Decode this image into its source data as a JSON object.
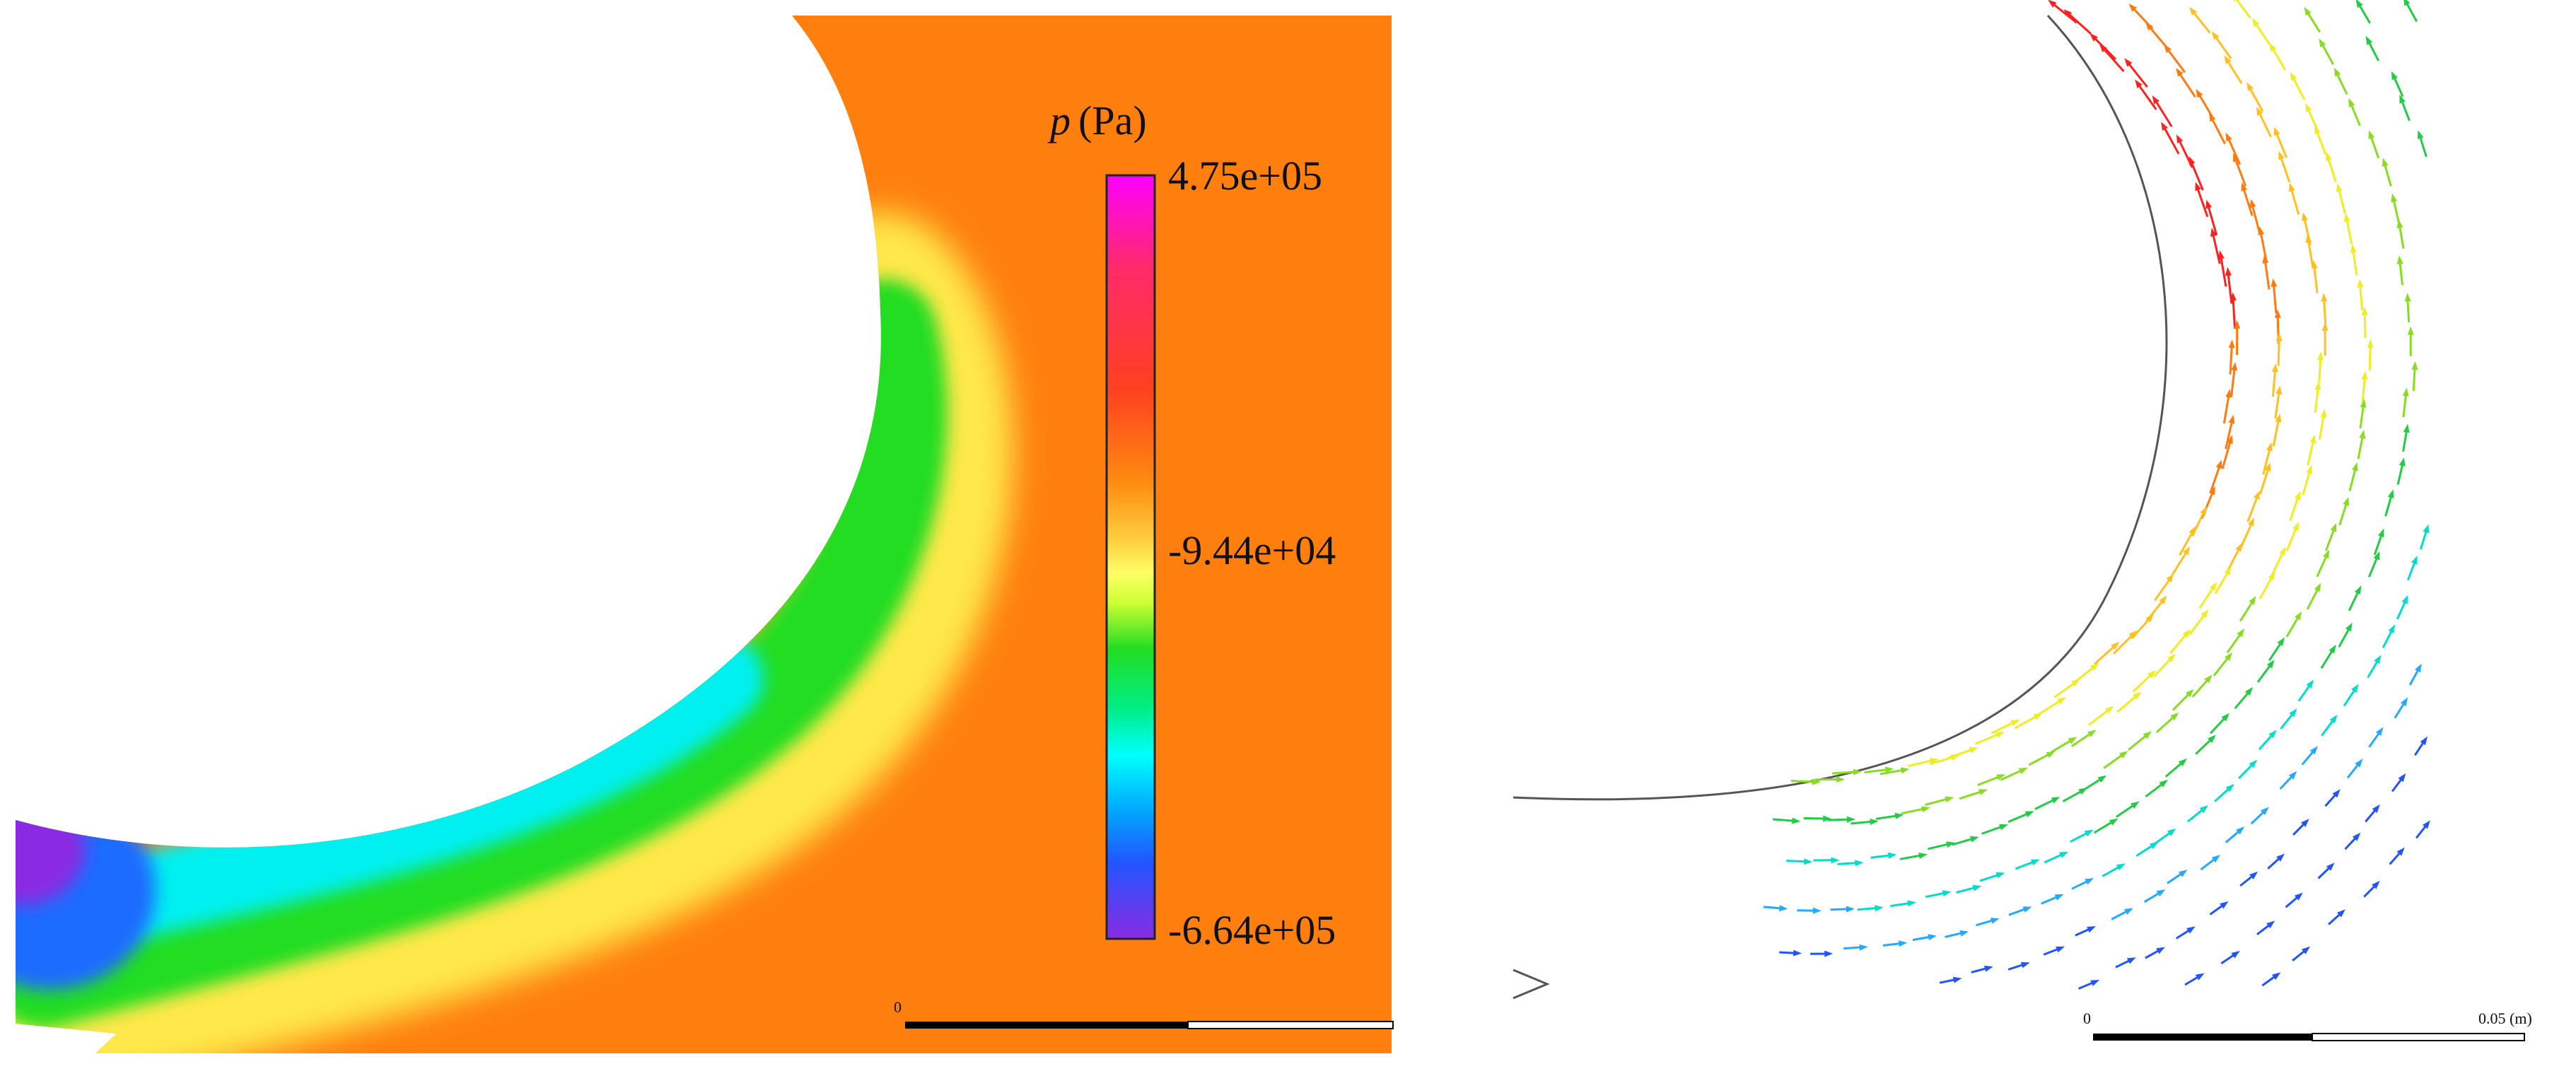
{
  "left_panel": {
    "colorbar": {
      "title_symbol": "p",
      "title_unit": "(Pa)",
      "max_label": "4.75e+05",
      "mid_label": "-9.44e+04",
      "min_label": "-6.64e+05",
      "colors": [
        "#ff00ff",
        "#ff2a6a",
        "#ff4020",
        "#ff8a10",
        "#ffd040",
        "#ffff66",
        "#ccff33",
        "#22dd22",
        "#00ee88",
        "#00ffff",
        "#00aaff",
        "#2255ff",
        "#7a38ff",
        "#8a2be2"
      ]
    },
    "field_colors": {
      "background": "#ff7f0e",
      "yellow": "#ffee55",
      "green": "#22dd22",
      "cyan": "#00ffff",
      "blue": "#1e6cff",
      "purple": "#8a2be2"
    },
    "scale_bar": {
      "zero_label": "0"
    }
  },
  "right_panel": {
    "scale_bar": {
      "zero_label": "0",
      "end_label": "0.05 (m)"
    },
    "arrow_colors": [
      "#ff2020",
      "#ff7a10",
      "#ffc020",
      "#eeee20",
      "#88dd22",
      "#22cc44",
      "#00ddcc",
      "#22aaff",
      "#2255ff"
    ]
  }
}
